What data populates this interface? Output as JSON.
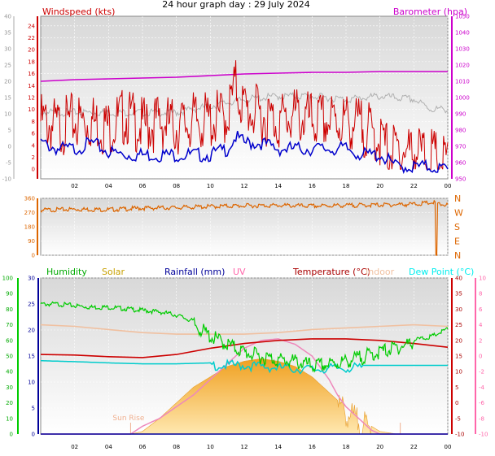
{
  "title": "24 hour graph day : 29 July 2024",
  "chart_data": [
    {
      "type": "line",
      "panel": "wind-barometer",
      "legend": [
        {
          "label": "Windspeed (kts)",
          "color": "#cc0000"
        },
        {
          "label": "Barometer (hpa)",
          "color": "#cc00cc"
        }
      ],
      "x_ticks": [
        "02",
        "04",
        "06",
        "08",
        "10",
        "12",
        "14",
        "16",
        "18",
        "20",
        "22",
        "00"
      ],
      "y_outer_left": {
        "ticks": [
          "-10",
          "-5",
          "0",
          "5",
          "10",
          "15",
          "20",
          "25",
          "30",
          "35",
          "40"
        ],
        "range": [
          -10,
          40
        ]
      },
      "y_left": {
        "ticks": [
          "0",
          "2",
          "4",
          "6",
          "8",
          "10",
          "12",
          "14",
          "16",
          "18",
          "20",
          "22",
          "24"
        ],
        "range": [
          -1.6,
          25.6
        ]
      },
      "y_right": {
        "ticks": [
          "950",
          "960",
          "970",
          "980",
          "990",
          "1000",
          "1010",
          "1020",
          "1030",
          "1040",
          "1050"
        ],
        "range": [
          950,
          1050
        ]
      },
      "series": [
        {
          "name": "Barometer (hpa)",
          "color": "#cc00cc",
          "axis": "right",
          "x": [
            0,
            2,
            4,
            6,
            8,
            10,
            12,
            14,
            16,
            18,
            20,
            22,
            24
          ],
          "y": [
            1010,
            1011,
            1011.5,
            1012,
            1012.5,
            1013.5,
            1014.5,
            1015,
            1015.5,
            1015.5,
            1016,
            1016,
            1016
          ]
        },
        {
          "name": "Windspeed (kts)",
          "color": "#cc0000",
          "axis": "left",
          "x": [
            0,
            1,
            2,
            3,
            4,
            5,
            6,
            7,
            8,
            9,
            10,
            11,
            11.5,
            12,
            13,
            14,
            15,
            16,
            17,
            18,
            19,
            20,
            20.5,
            21,
            22,
            23,
            24
          ],
          "y": [
            9,
            8,
            9,
            9,
            8,
            10,
            8,
            9,
            8,
            9,
            9,
            10,
            15,
            11,
            10,
            9,
            10,
            9,
            9,
            9,
            8,
            6,
            4,
            4,
            4,
            3,
            2
          ]
        },
        {
          "color": "#0000cc",
          "axis": "left",
          "x": [
            0,
            1,
            2,
            3,
            4,
            5,
            6,
            7,
            8,
            9,
            10,
            11,
            11.5,
            12,
            13,
            14,
            15,
            16,
            17,
            18,
            19,
            20,
            20.5,
            21,
            22,
            23,
            24
          ],
          "y": [
            5,
            4,
            4,
            5,
            3.5,
            3,
            3,
            3,
            3,
            3,
            3,
            4,
            6,
            5,
            5,
            4,
            4,
            4,
            4,
            4,
            3,
            3,
            2,
            1,
            1,
            1,
            0.5
          ]
        },
        {
          "color": "#b0b0b0",
          "axis": "outer_left",
          "x": [
            0,
            2,
            4,
            6,
            8,
            10,
            12,
            14,
            16,
            18,
            20,
            22,
            23,
            24
          ],
          "y": [
            11,
            11,
            11,
            11,
            11,
            13,
            15,
            16,
            16,
            15,
            16,
            15,
            12,
            12
          ]
        }
      ]
    },
    {
      "type": "line",
      "panel": "wind-direction",
      "y_left": {
        "ticks": [
          "0",
          "90",
          "180",
          "270",
          "360"
        ],
        "range": [
          0,
          360
        ]
      },
      "y_right_labels": [
        "N",
        "W",
        "S",
        "E",
        "N"
      ],
      "series": [
        {
          "name": "Wind direction",
          "color": "#dd6600",
          "x": [
            0,
            2,
            4,
            6,
            8,
            10,
            12,
            14,
            16,
            18,
            20,
            22,
            23.2,
            23.3,
            23.4,
            24
          ],
          "y": [
            292,
            298,
            295,
            305,
            308,
            315,
            320,
            322,
            318,
            322,
            325,
            330,
            340,
            0,
            330,
            325
          ]
        }
      ]
    },
    {
      "type": "line",
      "panel": "temperature-humidity-solar",
      "legend": [
        {
          "label": "Humidity",
          "color": "#00aa00"
        },
        {
          "label": "Solar",
          "color": "#c8a000"
        },
        {
          "label": "Rainfall (mm)",
          "color": "#000099"
        },
        {
          "label": "UV",
          "color": "#ff66aa"
        },
        {
          "label": "Temperature (°C)",
          "color": "#aa0000"
        },
        {
          "label": "Indoor",
          "color": "#f0c0a0"
        },
        {
          "label": "Dew Point (°C)",
          "color": "#00eeee"
        }
      ],
      "x_ticks": [
        "02",
        "04",
        "06",
        "08",
        "10",
        "12",
        "14",
        "16",
        "18",
        "20",
        "22",
        "00"
      ],
      "annotation": "Sun Rise",
      "y_humidity": {
        "ticks": [
          "0",
          "10",
          "20",
          "30",
          "40",
          "50",
          "60",
          "70",
          "80",
          "90",
          "100"
        ],
        "range": [
          0,
          100
        ]
      },
      "y_rain": {
        "ticks": [
          "0",
          "5",
          "10",
          "15",
          "20",
          "25",
          "30"
        ],
        "range": [
          0,
          30
        ]
      },
      "y_temp": {
        "ticks": [
          "-10",
          "-5",
          "0",
          "5",
          "10",
          "15",
          "20",
          "25",
          "30",
          "35",
          "40"
        ],
        "range": [
          -10,
          40
        ]
      },
      "y_uv": {
        "ticks": [
          "-10",
          "-8",
          "-6",
          "-4",
          "-2",
          "0",
          "2",
          "4",
          "6",
          "8",
          "10"
        ],
        "range": [
          -10,
          10
        ]
      },
      "series": [
        {
          "name": "Solar",
          "color": "#f0b040",
          "axis": "rain",
          "x": [
            0,
            5.3,
            6,
            7,
            8,
            9,
            10,
            11,
            12,
            13,
            14,
            15,
            16,
            17,
            18,
            19,
            20,
            21
          ],
          "y": [
            0,
            0,
            0.5,
            3,
            6,
            9,
            11,
            13,
            14,
            14.5,
            14,
            13,
            11,
            8,
            5,
            2.5,
            0.5,
            0
          ]
        },
        {
          "name": "Humidity",
          "color": "#00cc00",
          "axis": "humidity",
          "x": [
            0,
            1,
            2,
            3,
            4,
            5,
            6,
            7,
            8,
            9,
            10,
            11,
            12,
            13,
            14,
            15,
            16,
            17,
            18,
            19,
            20,
            21,
            22,
            23,
            24
          ],
          "y": [
            84,
            84,
            83,
            82,
            82,
            81,
            80,
            79,
            77,
            73,
            65,
            60,
            55,
            52,
            50,
            49,
            46,
            47,
            49,
            52,
            55,
            58,
            61,
            63,
            68
          ]
        },
        {
          "name": "Temperature (°C)",
          "color": "#cc0000",
          "axis": "temp",
          "x": [
            0,
            2,
            4,
            6,
            8,
            10,
            12,
            14,
            16,
            18,
            20,
            22,
            24
          ],
          "y": [
            15.5,
            15.3,
            14.8,
            14.5,
            15.5,
            17.5,
            19,
            20,
            20.5,
            20.5,
            20,
            19,
            17.8
          ]
        },
        {
          "name": "Indoor",
          "color": "#f0c0a0",
          "axis": "temp",
          "x": [
            0,
            2,
            4,
            6,
            8,
            10,
            12,
            14,
            16,
            18,
            20,
            22,
            24
          ],
          "y": [
            25,
            24.5,
            23.5,
            22.5,
            22,
            22,
            22,
            22.5,
            23.5,
            24,
            24.5,
            25,
            24.5
          ]
        },
        {
          "name": "Dew Point (°C)",
          "color": "#00cccc",
          "axis": "temp",
          "x": [
            0,
            2,
            4,
            6,
            8,
            10,
            12,
            14,
            16,
            18,
            20,
            22,
            24
          ],
          "y": [
            13.5,
            13.2,
            12.8,
            12.5,
            12.5,
            12.8,
            12.8,
            12,
            11.5,
            12,
            12,
            12,
            12
          ]
        },
        {
          "name": "UV",
          "color": "#ee88bb",
          "axis": "uv",
          "x": [
            0,
            5.3,
            6,
            7,
            8,
            9,
            10,
            11,
            12,
            13,
            14,
            15,
            16,
            17,
            17.5,
            18,
            19,
            19.5,
            20,
            21,
            24
          ],
          "y": [
            -10,
            -10,
            -9,
            -8,
            -6.5,
            -5,
            -3,
            -1,
            1,
            2,
            2.2,
            1.5,
            0,
            -3,
            -5,
            -6.5,
            -8.5,
            -9.5,
            -10,
            -10,
            -10
          ]
        },
        {
          "name": "Rainfall (mm)",
          "color": "#000099",
          "axis": "rain",
          "x": [
            0,
            24
          ],
          "y": [
            0,
            0
          ]
        }
      ]
    }
  ]
}
